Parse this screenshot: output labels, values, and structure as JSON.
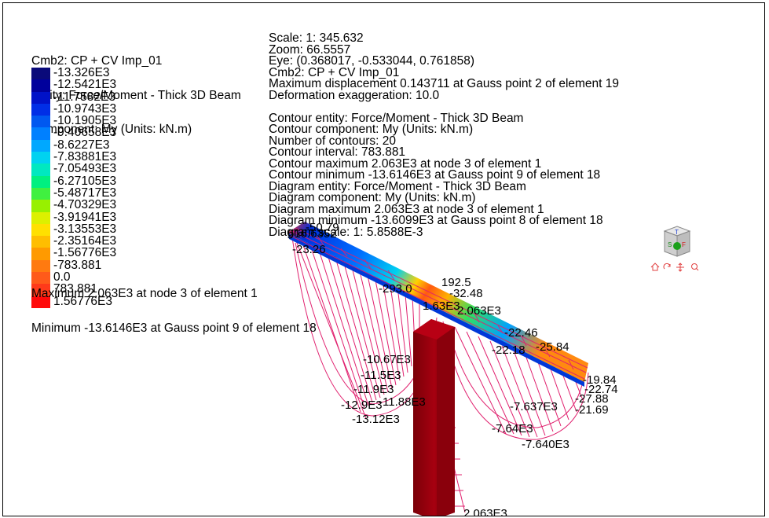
{
  "legend": {
    "header": [
      "Cmb2: CP + CV Imp_01",
      "Entity: Force/Moment - Thick 3D Beam",
      "Component: My (Units: kN.m)"
    ],
    "entries": [
      {
        "label": "-13.326E3",
        "color": "#0a0a7a"
      },
      {
        "label": "-12.5421E3",
        "color": "#00009c"
      },
      {
        "label": "-11.7582E3",
        "color": "#0012c8"
      },
      {
        "label": "-10.9743E3",
        "color": "#002ee6"
      },
      {
        "label": "-10.1905E3",
        "color": "#0058f0"
      },
      {
        "label": "-9.40658E3",
        "color": "#0080ff"
      },
      {
        "label": "-8.6227E3",
        "color": "#00a8ff"
      },
      {
        "label": "-7.83881E3",
        "color": "#00d2f0"
      },
      {
        "label": "-7.05493E3",
        "color": "#00e8c0"
      },
      {
        "label": "-6.27105E3",
        "color": "#00f080"
      },
      {
        "label": "-5.48717E3",
        "color": "#40f040"
      },
      {
        "label": "-4.70329E3",
        "color": "#98f000"
      },
      {
        "label": "-3.91941E3",
        "color": "#dcf000"
      },
      {
        "label": "-3.13553E3",
        "color": "#ffe000"
      },
      {
        "label": "-2.35164E3",
        "color": "#ffbe00"
      },
      {
        "label": "-1.56776E3",
        "color": "#ff9a00"
      },
      {
        "label": "-783.881",
        "color": "#ff7a10"
      },
      {
        "label": "0.0",
        "color": "#ff5a1a"
      },
      {
        "label": "783.881",
        "color": "#ff3a1a"
      },
      {
        "label": "1.56776E3",
        "color": "#ff0a0a"
      }
    ],
    "maximum": "Maximum 2.063E3 at node 3 of element 1",
    "minimum": "Minimum -13.6146E3 at Gauss point 9 of element 18"
  },
  "info": [
    "Scale: 1: 345.632",
    "Zoom: 66.5557",
    "Eye: (0.368017, -0.533044, 0.761858)",
    "Cmb2: CP + CV Imp_01",
    "Maximum displacement 0.143711 at Gauss point 2 of element 19",
    "Deformation exaggeration: 10.0",
    "",
    "Contour entity: Force/Moment - Thick 3D Beam",
    "Contour component: My (Units: kN.m)",
    "Number of contours: 20",
    "Contour interval: 783.881",
    "Contour maximum 2.063E3 at node 3 of element 1",
    "Contour minimum -13.6146E3 at Gauss point 9 of element 18",
    "Diagram entity: Force/Moment - Thick 3D Beam",
    "Diagram component: My (Units: kN.m)",
    "Diagram maximum 2.063E3 at node 3 of element 1",
    "Diagram minimum -13.6099E3 at Gauss point 8 of element 18",
    "Diagram scale: 1: 5.8588E-3"
  ],
  "viewport_labels": [
    {
      "text": "-50.79"
    },
    {
      "text": "616.6352"
    },
    {
      "text": "-23.26"
    },
    {
      "text": "-293.0"
    },
    {
      "text": "192.5"
    },
    {
      "text": "-32.48"
    },
    {
      "text": "1.63E3"
    },
    {
      "text": "2.063E3"
    },
    {
      "text": "-22.46"
    },
    {
      "text": "-25.84"
    },
    {
      "text": "-22.18"
    },
    {
      "text": "-19.84"
    },
    {
      "text": "-22.74"
    },
    {
      "text": "-27.88"
    },
    {
      "text": "-21.69"
    },
    {
      "text": "-10.67E3"
    },
    {
      "text": "-11.5E3"
    },
    {
      "text": "-11.9E3"
    },
    {
      "text": "-11.88E3"
    },
    {
      "text": "-12.9E3"
    },
    {
      "text": "-13.12E3"
    },
    {
      "text": "-7.637E3"
    },
    {
      "text": "-7.64E3"
    },
    {
      "text": "-7.640E3"
    },
    {
      "text": "2.063E3"
    }
  ],
  "view_cube": {
    "top_letter": "T",
    "front_letter": "F",
    "side_letter": "S"
  },
  "nav_icons": [
    "home-icon",
    "rotate-icon",
    "pan-icon",
    "zoom-icon"
  ]
}
